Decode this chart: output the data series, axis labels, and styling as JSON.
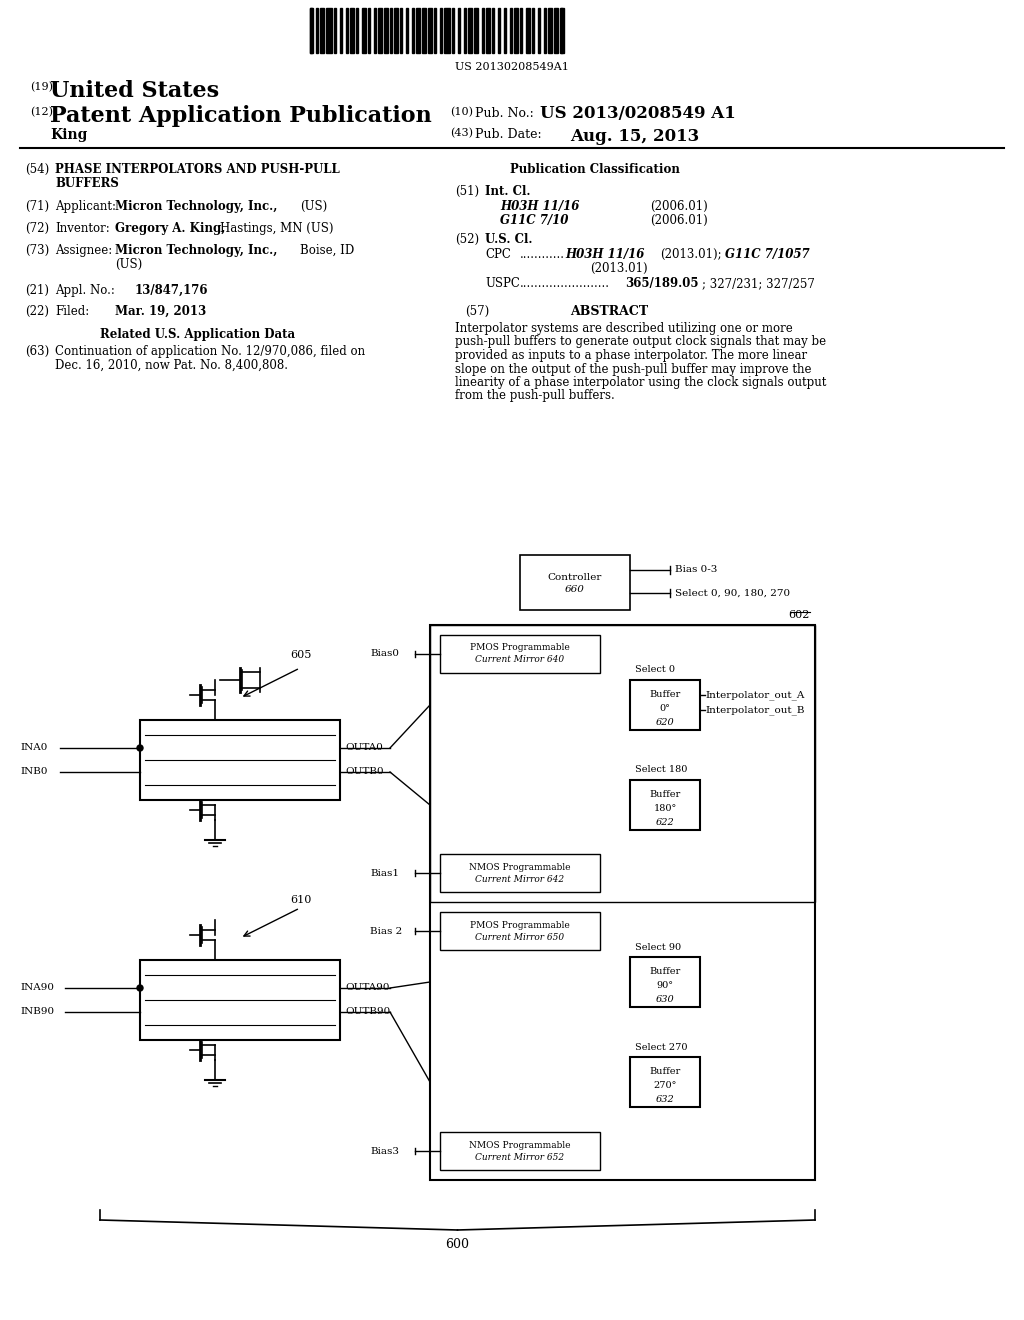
{
  "bg_color": "#ffffff",
  "barcode_text": "US 20130208549A1",
  "header_line1_num": "(19)",
  "header_line1_text": "United States",
  "header_line2_num": "(12)",
  "header_line2_text": "Patent Application Publication",
  "header_line2_right1_num": "(10)",
  "header_line2_right1_text": "Pub. No.:",
  "header_line2_right1_val": "US 2013/0208549 A1",
  "header_line3_left": "King",
  "header_line3_right_num": "(43)",
  "header_line3_right_text": "Pub. Date:",
  "header_line3_right_val": "Aug. 15, 2013",
  "title_num": "(54)",
  "title_text": "PHASE INTERPOLATORS AND PUSH-PULL\n    BUFFERS",
  "pub_class_header": "Publication Classification",
  "int_cl_num": "(51)",
  "int_cl_label": "Int. Cl.",
  "int_cl_items": [
    [
      "H03H 11/16",
      "(2006.01)"
    ],
    [
      "G11C 7/10",
      "(2006.01)"
    ]
  ],
  "us_cl_num": "(52)",
  "us_cl_label": "U.S. Cl.",
  "cpc_label": "CPC",
  "cpc_dots": "............",
  "cpc_text": "H03H 11/16 (2013.01); G11C 7/1057\n                (2013.01)",
  "uspc_label": "USPC",
  "uspc_dots": "........................",
  "uspc_text": "365/189.05; 327/231; 327/257",
  "appl_num": "(71)",
  "appl_label": "Applicant:",
  "appl_text": "Micron Technology, Inc., (US)",
  "inventor_num": "(72)",
  "inventor_label": "Inventor:",
  "inventor_text": "Gregory A. King, Hastings, MN (US)",
  "assignee_num": "(73)",
  "assignee_label": "Assignee:",
  "assignee_text": "Micron Technology, Inc., Boise, ID\n        (US)",
  "appl_no_num": "(21)",
  "appl_no_label": "Appl. No.:",
  "appl_no_val": "13/847,176",
  "filed_num": "(22)",
  "filed_label": "Filed:",
  "filed_val": "Mar. 19, 2013",
  "rel_app_header": "Related U.S. Application Data",
  "rel_app_num": "(63)",
  "rel_app_text": "Continuation of application No. 12/970,086, filed on\n    Dec. 16, 2010, now Pat. No. 8,400,808.",
  "abstract_num": "(57)",
  "abstract_label": "ABSTRACT",
  "abstract_text": "Interpolator systems are described utilizing one or more push-pull buffers to generate output clock signals that may be provided as inputs to a phase interpolator. The more linear slope on the output of the push-pull buffer may improve the linearity of a phase interpolator using the clock signals output from the push-pull buffers."
}
